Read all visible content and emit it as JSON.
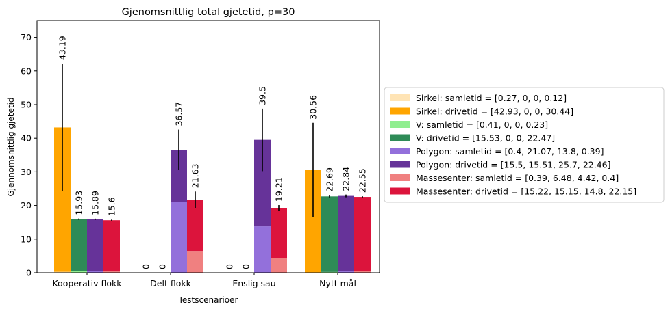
{
  "chart_data": {
    "type": "bar",
    "stacked_within_group": true,
    "title": "Gjenomsnittlig total gjetetid, p=30",
    "xlabel": "Testscenarioer",
    "ylabel": "Gjennomsnittlig gjetetid",
    "ylim": [
      0,
      75
    ],
    "yticks": [
      0,
      10,
      20,
      30,
      40,
      50,
      60,
      70
    ],
    "grid": false,
    "legend_position": "right-outside",
    "categories": [
      "Kooperativ flokk",
      "Delt flokk",
      "Enslig sau",
      "Nytt mål"
    ],
    "groups": [
      {
        "name": "Sirkel",
        "segments": [
          {
            "name": "Sirkel: samletid = [0.27, 0, 0, 0.12]",
            "color": "#ffe4b5",
            "values": [
              0.27,
              0,
              0,
              0.12
            ]
          },
          {
            "name": "Sirkel: drivetid = [42.93, 0, 0, 30.44]",
            "color": "#ffa500",
            "values": [
              42.93,
              0,
              0,
              30.44
            ]
          }
        ],
        "totals": [
          43.19,
          0,
          0,
          30.56
        ],
        "total_labels": [
          "43.19",
          "0",
          "0",
          "30.56"
        ],
        "errors": [
          19.0,
          0,
          0,
          14.0
        ]
      },
      {
        "name": "V",
        "segments": [
          {
            "name": "V: samletid = [0.41, 0, 0, 0.23]",
            "color": "#90ee90",
            "values": [
              0.41,
              0,
              0,
              0.23
            ]
          },
          {
            "name": "V: drivetid = [15.53, 0, 0, 22.47]",
            "color": "#2e8b57",
            "values": [
              15.53,
              0,
              0,
              22.47
            ]
          }
        ],
        "totals": [
          15.93,
          0,
          0,
          22.69
        ],
        "total_labels": [
          "15.93",
          "0",
          "0",
          "22.69"
        ],
        "errors": [
          0.2,
          0,
          0,
          0.3
        ]
      },
      {
        "name": "Polygon",
        "segments": [
          {
            "name": "Polygon: samletid = [0.4, 21.07, 13.8, 0.39]",
            "color": "#9370db",
            "values": [
              0.4,
              21.07,
              13.8,
              0.39
            ]
          },
          {
            "name": "Polygon: drivetid = [15.5, 15.51, 25.7, 22.46]",
            "color": "#663399",
            "values": [
              15.5,
              15.51,
              25.7,
              22.46
            ]
          }
        ],
        "totals": [
          15.89,
          36.57,
          39.5,
          22.84
        ],
        "total_labels": [
          "15.89",
          "36.57",
          "39.5",
          "22.84"
        ],
        "errors": [
          0.2,
          6.0,
          9.3,
          0.4
        ]
      },
      {
        "name": "Massesenter",
        "segments": [
          {
            "name": "Massesenter: samletid = [0.39, 6.48, 4.42, 0.4]",
            "color": "#f08080",
            "values": [
              0.39,
              6.48,
              4.42,
              0.4
            ]
          },
          {
            "name": "Massesenter: drivetid = [15.22, 15.15, 14.8, 22.15]",
            "color": "#dc143c",
            "values": [
              15.22,
              15.15,
              14.8,
              22.15
            ]
          }
        ],
        "totals": [
          15.6,
          21.63,
          19.21,
          22.55
        ],
        "total_labels": [
          "15.6",
          "21.63",
          "19.21",
          "22.55"
        ],
        "errors": [
          0.2,
          2.5,
          0.9,
          0.2
        ]
      }
    ]
  }
}
